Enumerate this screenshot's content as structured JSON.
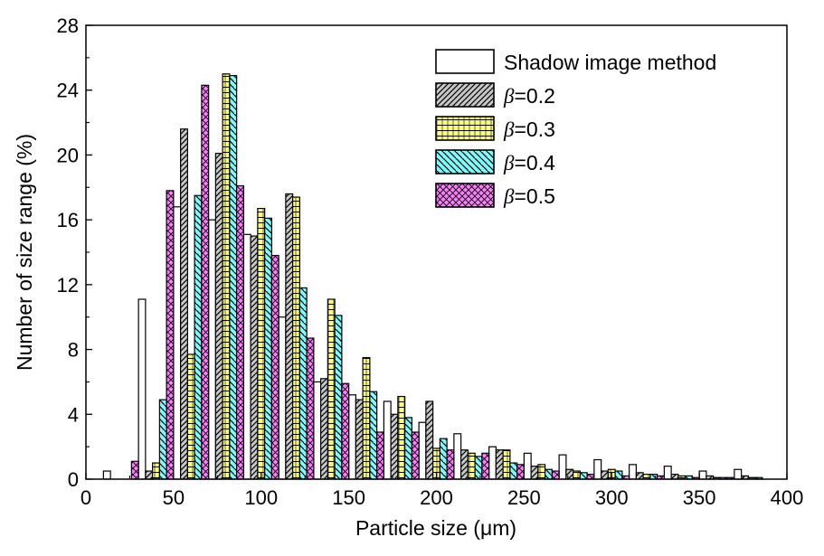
{
  "chart_data": {
    "type": "bar",
    "xlabel": "Particle size (μm)",
    "ylabel": "Number of size range (%)",
    "xlim": [
      0,
      400
    ],
    "ylim": [
      0,
      28
    ],
    "x_ticks": [
      "0",
      "50",
      "100",
      "150",
      "200",
      "250",
      "300",
      "350",
      "400"
    ],
    "y_ticks": [
      "0",
      "4",
      "8",
      "12",
      "16",
      "20",
      "24",
      "28"
    ],
    "legend_position": "top-right",
    "bin_width": 20,
    "bin_starts": [
      10,
      30,
      50,
      70,
      90,
      110,
      130,
      150,
      170,
      190,
      210,
      230,
      250,
      270,
      290,
      310,
      330,
      350,
      370,
      390
    ],
    "series": [
      {
        "name": "Shadow image method",
        "legend_prefix": "",
        "legend_symbol": "",
        "legend_suffix": "Shadow image method",
        "pattern": "none",
        "color": "#ffffff",
        "values": [
          0.5,
          11.1,
          16.8,
          16.0,
          15.1,
          10.0,
          6.0,
          5.2,
          4.8,
          3.5,
          2.8,
          2.0,
          1.6,
          1.5,
          1.2,
          0.9,
          0.8,
          0.5,
          0.6,
          0.0
        ]
      },
      {
        "name": "β=0.2",
        "legend_prefix": "",
        "legend_symbol": "β",
        "legend_suffix": "=0.2",
        "pattern": "diag",
        "color": "#c8c8c8",
        "values": [
          0.0,
          0.5,
          21.6,
          20.1,
          15.0,
          17.6,
          6.2,
          4.9,
          4.0,
          4.8,
          1.8,
          1.8,
          0.8,
          0.6,
          0.5,
          0.4,
          0.3,
          0.2,
          0.2,
          0.0
        ]
      },
      {
        "name": "β=0.3",
        "legend_prefix": "",
        "legend_symbol": "β",
        "legend_suffix": "=0.3",
        "pattern": "grid",
        "color": "#ffff7f",
        "values": [
          0.0,
          1.0,
          7.7,
          25.0,
          16.7,
          17.4,
          11.1,
          7.5,
          5.1,
          1.9,
          1.6,
          1.8,
          0.9,
          0.5,
          0.6,
          0.3,
          0.2,
          0.1,
          0.1,
          0.0
        ]
      },
      {
        "name": "β=0.4",
        "legend_prefix": "",
        "legend_symbol": "β",
        "legend_suffix": "=0.4",
        "pattern": "back",
        "color": "#7fffff",
        "values": [
          0.0,
          4.9,
          17.5,
          24.9,
          16.1,
          11.8,
          10.1,
          5.4,
          3.8,
          2.5,
          1.4,
          1.0,
          0.6,
          0.4,
          0.5,
          0.3,
          0.2,
          0.1,
          0.1,
          0.0
        ]
      },
      {
        "name": "β=0.5",
        "legend_prefix": "",
        "legend_symbol": "β",
        "legend_suffix": "=0.5",
        "pattern": "cross",
        "color": "#ff7fff",
        "values": [
          1.1,
          17.8,
          24.3,
          18.1,
          13.8,
          8.7,
          5.9,
          2.9,
          2.9,
          1.8,
          1.6,
          0.9,
          0.5,
          0.3,
          0.2,
          0.2,
          0.1,
          0.1,
          0.0,
          0.0
        ]
      }
    ]
  }
}
